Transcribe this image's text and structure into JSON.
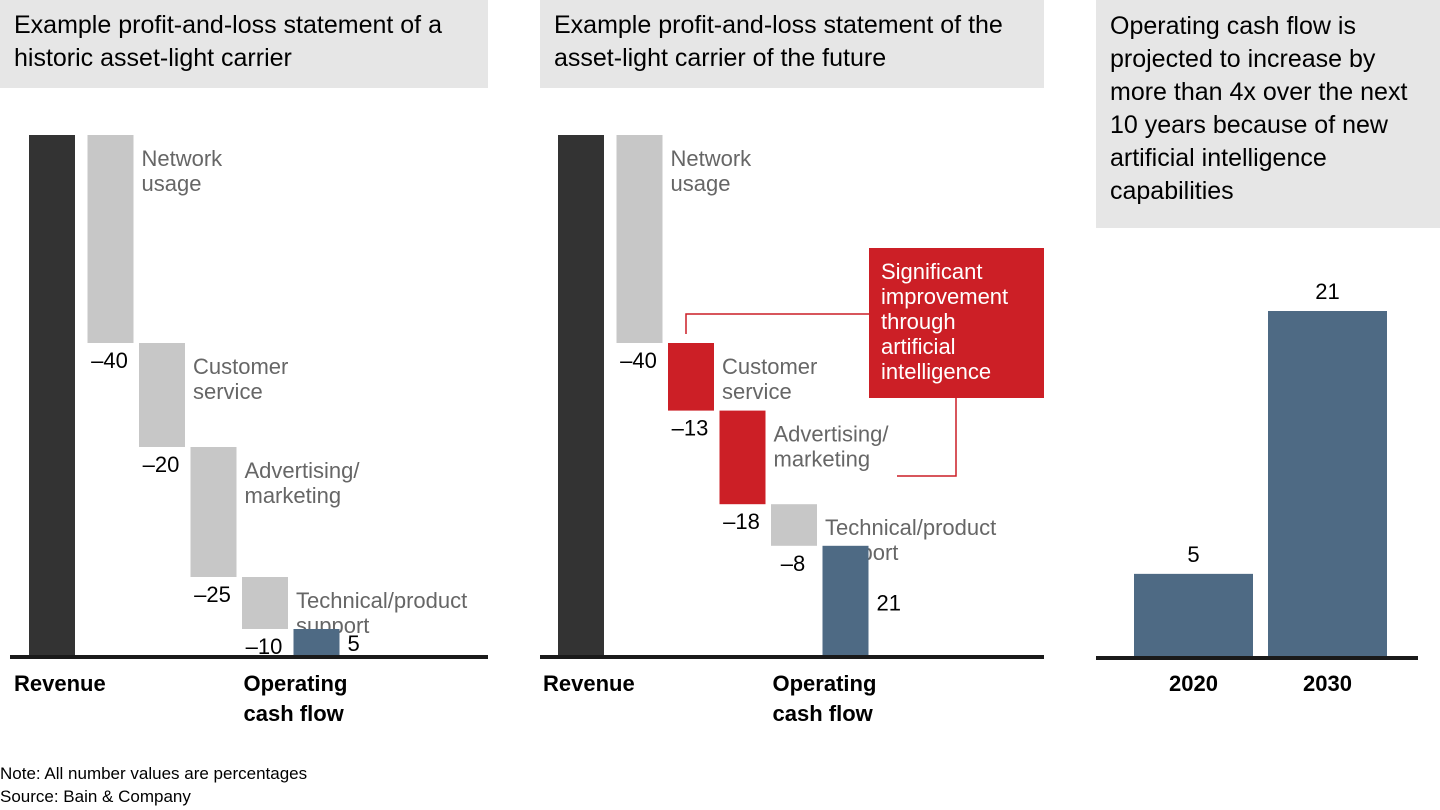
{
  "colors": {
    "revenue": "#333333",
    "cost_default": "#c7c7c7",
    "cost_ai": "#cc1f26",
    "cash": "#4e6a84",
    "label_gray": "#666666",
    "axis": "#1a1a1a"
  },
  "headers": {
    "left": "Example profit-and-loss statement of a historic asset-light carrier",
    "middle": "Example profit-and-loss statement of the asset-light carrier of the future",
    "right": "Operating cash flow is projected to increase by more than 4x over the next 10 years because of new artificial intelligence capabilities"
  },
  "callout": "Significant improvement through artificial intelligence",
  "footer": {
    "note": "Note: All number values are percentages",
    "source": "Source: Bain & Company"
  },
  "chart_data": [
    {
      "type": "waterfall",
      "title": "Example profit-and-loss statement of a historic asset-light carrier",
      "start": {
        "label": "Revenue",
        "value": 100
      },
      "steps": [
        {
          "label": "Network usage",
          "value": -40,
          "value_label": "–40"
        },
        {
          "label": "Customer service",
          "value": -20,
          "value_label": "–20"
        },
        {
          "label": "Advertising/ marketing",
          "value": -25,
          "value_label": "–25"
        },
        {
          "label": "Technical/product support",
          "value": -10,
          "value_label": "–10"
        }
      ],
      "end": {
        "label": "Operating cash flow",
        "value": 5,
        "value_label": "5"
      },
      "ylim": [
        0,
        100
      ]
    },
    {
      "type": "waterfall",
      "title": "Example profit-and-loss statement of the asset-light carrier of the future",
      "start": {
        "label": "Revenue",
        "value": 100
      },
      "steps": [
        {
          "label": "Network usage",
          "value": -40,
          "value_label": "–40",
          "ai": false
        },
        {
          "label": "Customer service",
          "value": -13,
          "value_label": "–13",
          "ai": true
        },
        {
          "label": "Advertising/ marketing",
          "value": -18,
          "value_label": "–18",
          "ai": true
        },
        {
          "label": "Technical/product support",
          "value": -8,
          "value_label": "–8",
          "ai": false
        }
      ],
      "end": {
        "label": "Operating cash flow",
        "value": 21,
        "value_label": "21"
      },
      "ylim": [
        0,
        100
      ]
    },
    {
      "type": "bar",
      "title": "Operating cash flow is projected to increase by more than 4x over the next 10 years because of new artificial intelligence capabilities",
      "categories": [
        "2020",
        "2030"
      ],
      "values": [
        5,
        21
      ],
      "value_labels": [
        "5",
        "21"
      ]
    }
  ]
}
